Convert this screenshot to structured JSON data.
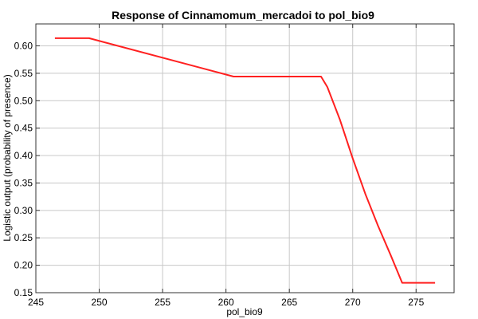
{
  "chart_data": {
    "type": "line",
    "title": "Response of Cinnamomum_mercadoi to pol_bio9",
    "xlabel": "pol_bio9",
    "ylabel": "Logistic output (probability of presence)",
    "xlim": [
      245,
      278
    ],
    "ylim": [
      0.15,
      0.64
    ],
    "xticks": [
      245,
      250,
      255,
      260,
      265,
      270,
      275
    ],
    "yticks": [
      0.15,
      0.2,
      0.25,
      0.3,
      0.35,
      0.4,
      0.45,
      0.5,
      0.55,
      0.6
    ],
    "xtick_labels": [
      "245",
      "250",
      "255",
      "260",
      "265",
      "270",
      "275"
    ],
    "ytick_labels": [
      "0.15",
      "0.20",
      "0.25",
      "0.30",
      "0.35",
      "0.40",
      "0.45",
      "0.50",
      "0.55",
      "0.60"
    ],
    "grid": true,
    "series": [
      {
        "color": "#ff2020",
        "x": [
          246.5,
          249.2,
          260.6,
          267.5,
          268.0,
          269.0,
          270.0,
          271.0,
          272.0,
          273.0,
          273.9,
          274.5,
          276.5
        ],
        "y": [
          0.614,
          0.614,
          0.544,
          0.544,
          0.525,
          0.465,
          0.395,
          0.33,
          0.272,
          0.218,
          0.168,
          0.168,
          0.168
        ]
      }
    ]
  }
}
